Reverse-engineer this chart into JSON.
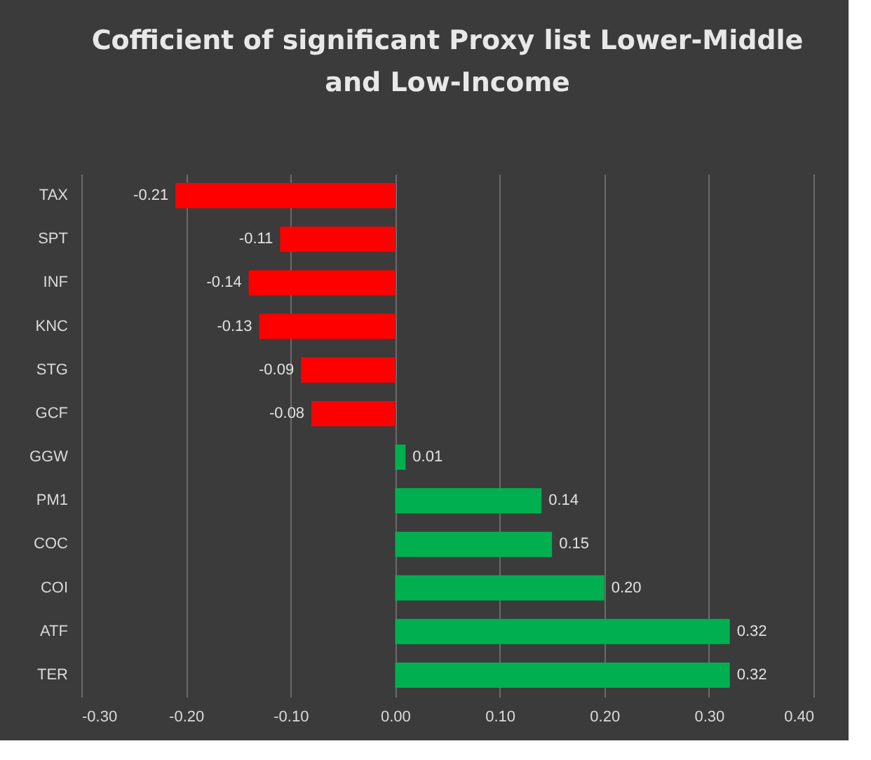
{
  "chart_data": {
    "type": "bar",
    "orientation": "horizontal",
    "title": "Cofficient of significant Proxy list Lower-Middle and Low-Income",
    "categories": [
      "TAX",
      "SPT",
      "INF",
      "KNC",
      "STG",
      "GCF",
      "GGW",
      "PM1",
      "COC",
      "COI",
      "ATF",
      "TER"
    ],
    "values": [
      -0.21,
      -0.11,
      -0.14,
      -0.13,
      -0.09,
      -0.08,
      0.01,
      0.14,
      0.15,
      0.2,
      0.32,
      0.32
    ],
    "value_labels": [
      "-0.21",
      "-0.11",
      "-0.14",
      "-0.13",
      "-0.09",
      "-0.08",
      "0.01",
      "0.14",
      "0.15",
      "0.20",
      "0.32",
      "0.32"
    ],
    "colors": [
      "#ff0000",
      "#ff0000",
      "#ff0000",
      "#ff0000",
      "#ff0000",
      "#ff0000",
      "#00b050",
      "#00b050",
      "#00b050",
      "#00b050",
      "#00b050",
      "#00b050"
    ],
    "xlim": [
      -0.3,
      0.4
    ],
    "xticks": [
      {
        "value": -0.3,
        "label": "-0.30"
      },
      {
        "value": -0.2,
        "label": "-0.20"
      },
      {
        "value": -0.1,
        "label": "-0.10"
      },
      {
        "value": 0,
        "label": "0.00"
      },
      {
        "value": 0.1,
        "label": "0.10"
      },
      {
        "value": 0.2,
        "label": "0.20"
      },
      {
        "value": 0.3,
        "label": "0.30"
      },
      {
        "value": 0.4,
        "label": "0.40"
      }
    ],
    "grid": "x"
  }
}
